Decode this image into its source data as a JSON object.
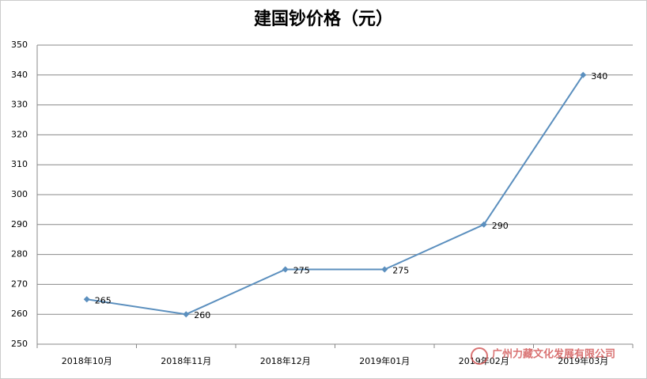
{
  "chart_data": {
    "type": "line",
    "title": "建国钞价格（元）",
    "categories": [
      "2018年10月",
      "2018年11月",
      "2018年12月",
      "2019年01月",
      "2019年02月",
      "2019年03月"
    ],
    "series": [
      {
        "color": "#5b8fbe",
        "values": [
          265,
          260,
          275,
          275,
          290,
          340
        ]
      }
    ],
    "ylim": [
      250,
      350
    ],
    "yticks": [
      250,
      260,
      270,
      280,
      290,
      300,
      310,
      320,
      330,
      340,
      350
    ],
    "grid": true,
    "data_labels": true
  },
  "watermark": "广州力藏文化发展有限公司"
}
